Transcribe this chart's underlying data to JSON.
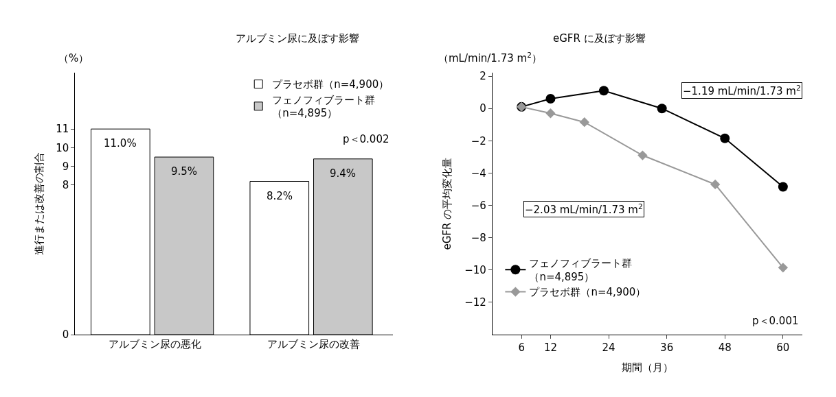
{
  "chart_data": [
    {
      "type": "bar",
      "title": "アルブミン尿に及ぼす影響",
      "ylabel": "進行または改善の割合",
      "categories": [
        "アルブミン尿の悪化",
        "アルブミン尿の改善"
      ],
      "series": [
        {
          "name": "プラセボ群（n=4,900）",
          "color": "#ffffff",
          "values": [
            11.0,
            8.2
          ],
          "value_labels": [
            "11.0%",
            "8.2%"
          ]
        },
        {
          "name": "フェノフィブラート群（n=4,895）",
          "color": "#c8c8c8",
          "values": [
            9.5,
            9.4
          ],
          "value_labels": [
            "9.5%",
            "9.4%"
          ]
        }
      ],
      "ylim": [
        0,
        14
      ],
      "yticks": [
        0,
        8,
        9,
        10,
        11
      ],
      "annotations": [
        "（%）",
        "p＜0.002"
      ],
      "legend": "top right"
    },
    {
      "type": "line",
      "title": "eGFR に及ぼす影響",
      "xlabel": "期間（月）",
      "ylabel": "eGFR の平均変化量",
      "line_style": "solid",
      "series": [
        {
          "name": "フェノフィブラート群（n=4,895）",
          "color": "#000000",
          "marker": "circle",
          "x": [
            6,
            12,
            23,
            35,
            48,
            60
          ],
          "values": [
            0.1,
            0.6,
            1.1,
            0.0,
            -1.85,
            -4.85
          ]
        },
        {
          "name": "プラセボ群（n=4,900）",
          "color": "#999999",
          "marker": "diamond",
          "x": [
            6,
            12,
            19,
            31,
            46,
            60
          ],
          "values": [
            0.1,
            -0.3,
            -0.85,
            -2.9,
            -4.7,
            -9.85
          ]
        }
      ],
      "xlim": [
        0,
        64
      ],
      "xticks": [
        6,
        12,
        24,
        36,
        48,
        60
      ],
      "ylim": [
        -14,
        2.2
      ],
      "yticks": [
        2,
        0,
        {
          "value": -2,
          "label": "−2"
        },
        {
          "value": -4,
          "label": "−4"
        },
        {
          "value": -6,
          "label": "−6"
        },
        {
          "value": -8,
          "label": "−8"
        },
        {
          "value": -10,
          "label": "−10"
        },
        {
          "value": -12,
          "label": "−12"
        }
      ],
      "annotations": [
        "（mL/min/1.73 m$^{2}$）",
        "p＜0.001",
        "−1.19 mL/min/1.73 m$^{2}$",
        "−2.03 mL/min/1.73 m$^{2}$"
      ],
      "legend": "bottom left"
    }
  ]
}
